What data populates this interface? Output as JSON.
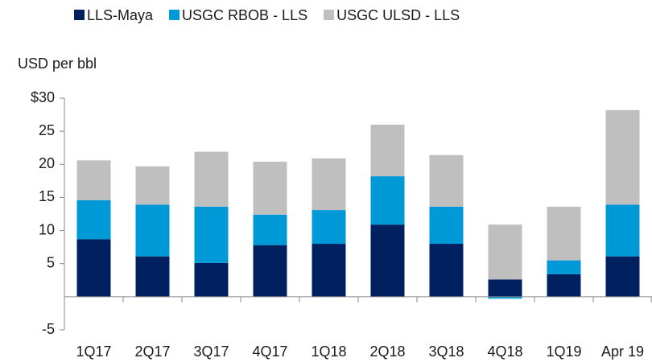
{
  "chart_data": {
    "type": "stacked_bar",
    "y_label": "USD per bbl",
    "categories": [
      "1Q17",
      "2Q17",
      "3Q17",
      "4Q17",
      "1Q18",
      "2Q18",
      "3Q18",
      "4Q18",
      "1Q19",
      "Apr 19"
    ],
    "series": [
      {
        "name": "LLS-Maya",
        "color": "#002060",
        "values": [
          8.7,
          6.1,
          5.1,
          7.8,
          8.0,
          10.9,
          8.0,
          2.6,
          3.4,
          6.1
        ]
      },
      {
        "name": "USGC RBOB - LLS",
        "color": "#0099d8",
        "values": [
          5.9,
          7.8,
          8.5,
          4.6,
          5.1,
          7.3,
          5.6,
          -0.3,
          2.1,
          7.8
        ]
      },
      {
        "name": "USGC ULSD - LLS",
        "color": "#bfbfbf",
        "values": [
          6.0,
          5.8,
          8.3,
          8.0,
          7.8,
          7.8,
          7.8,
          8.3,
          8.1,
          14.3
        ]
      }
    ],
    "ylim": [
      -5,
      30
    ],
    "yticks": [
      -5,
      5,
      10,
      15,
      20,
      25,
      {
        "value": 30,
        "label": "$30"
      }
    ],
    "legend": "top"
  }
}
